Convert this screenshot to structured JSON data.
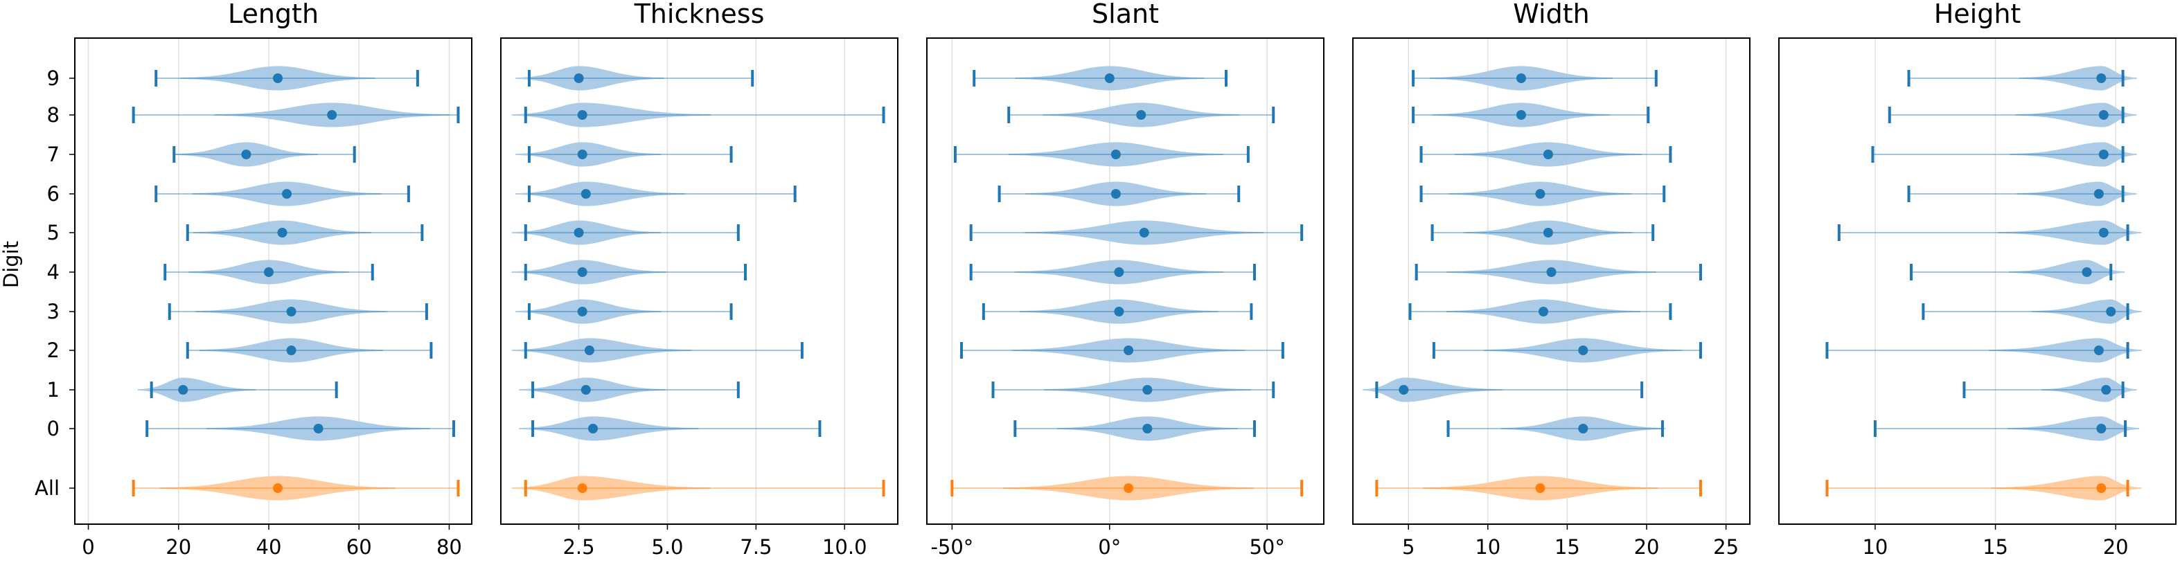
{
  "figure": {
    "ylabel": "Digit",
    "rows": [
      "9",
      "8",
      "7",
      "6",
      "5",
      "4",
      "3",
      "2",
      "1",
      "0",
      "All"
    ],
    "colors": {
      "digit_fill": "#a6c8e6",
      "digit_mark": "#1f77b4",
      "all_fill": "#ffc99a",
      "all_mark": "#ff7f0e",
      "grid": "#e0e0e0"
    }
  },
  "chart_data": [
    {
      "type": "violin",
      "title": "Length",
      "xlim": [
        -3,
        85
      ],
      "xticks": [
        0,
        20,
        40,
        60,
        80
      ],
      "xtick_labels": [
        "0",
        "20",
        "40",
        "60",
        "80"
      ],
      "rows": [
        "9",
        "8",
        "7",
        "6",
        "5",
        "4",
        "3",
        "2",
        "1",
        "0",
        "All"
      ],
      "min": [
        15,
        10,
        19,
        15,
        22,
        17,
        18,
        22,
        14,
        13,
        10
      ],
      "max": [
        73,
        82,
        59,
        71,
        74,
        63,
        75,
        76,
        55,
        81,
        82
      ],
      "median": [
        42,
        54,
        35,
        44,
        43,
        40,
        45,
        45,
        21,
        51,
        42
      ]
    },
    {
      "type": "violin",
      "title": "Thickness",
      "xlim": [
        0.3,
        11.5
      ],
      "xticks": [
        2.5,
        5.0,
        7.5,
        10.0
      ],
      "xtick_labels": [
        "2.5",
        "5.0",
        "7.5",
        "10.0"
      ],
      "rows": [
        "9",
        "8",
        "7",
        "6",
        "5",
        "4",
        "3",
        "2",
        "1",
        "0",
        "All"
      ],
      "min": [
        1.1,
        1.0,
        1.1,
        1.1,
        1.0,
        1.0,
        1.1,
        1.0,
        1.2,
        1.2,
        1.0
      ],
      "max": [
        7.4,
        11.1,
        6.8,
        8.6,
        7.0,
        7.2,
        6.8,
        8.8,
        7.0,
        9.3,
        11.1
      ],
      "median": [
        2.5,
        2.6,
        2.6,
        2.7,
        2.5,
        2.6,
        2.6,
        2.8,
        2.7,
        2.9,
        2.6
      ]
    },
    {
      "type": "violin",
      "title": "Slant",
      "xlim": [
        -58,
        68
      ],
      "xticks": [
        -50,
        0,
        50
      ],
      "xtick_labels": [
        "-50°",
        "0°",
        "50°"
      ],
      "rows": [
        "9",
        "8",
        "7",
        "6",
        "5",
        "4",
        "3",
        "2",
        "1",
        "0",
        "All"
      ],
      "min": [
        -43,
        -32,
        -49,
        -35,
        -44,
        -44,
        -40,
        -47,
        -37,
        -30,
        -50
      ],
      "max": [
        37,
        52,
        44,
        41,
        61,
        46,
        45,
        55,
        52,
        46,
        61
      ],
      "median": [
        0,
        10,
        2,
        2,
        11,
        3,
        3,
        6,
        12,
        12,
        6
      ]
    },
    {
      "type": "violin",
      "title": "Width",
      "xlim": [
        1.5,
        26.5
      ],
      "xticks": [
        5,
        10,
        15,
        20,
        25
      ],
      "xtick_labels": [
        "5",
        "10",
        "15",
        "20",
        "25"
      ],
      "rows": [
        "9",
        "8",
        "7",
        "6",
        "5",
        "4",
        "3",
        "2",
        "1",
        "0",
        "All"
      ],
      "min": [
        5.3,
        5.3,
        5.8,
        5.8,
        6.5,
        5.5,
        5.1,
        6.6,
        3.0,
        7.5,
        3.0
      ],
      "max": [
        20.6,
        20.1,
        21.5,
        21.1,
        20.4,
        23.4,
        21.5,
        23.4,
        19.7,
        21.0,
        23.4
      ],
      "median": [
        12.1,
        12.1,
        13.8,
        13.3,
        13.8,
        14.0,
        13.5,
        16.0,
        4.7,
        16.0,
        13.3
      ]
    },
    {
      "type": "violin",
      "title": "Height",
      "xlim": [
        6,
        22.5
      ],
      "xticks": [
        10,
        15,
        20
      ],
      "xtick_labels": [
        "10",
        "15",
        "20"
      ],
      "rows": [
        "9",
        "8",
        "7",
        "6",
        "5",
        "4",
        "3",
        "2",
        "1",
        "0",
        "All"
      ],
      "min": [
        11.4,
        10.6,
        9.9,
        11.4,
        8.5,
        11.5,
        12.0,
        8.0,
        13.7,
        10.0,
        8.0
      ],
      "max": [
        20.3,
        20.3,
        20.3,
        20.3,
        20.5,
        19.8,
        20.5,
        20.5,
        20.3,
        20.4,
        20.5
      ],
      "median": [
        19.4,
        19.5,
        19.5,
        19.3,
        19.5,
        18.8,
        19.8,
        19.3,
        19.6,
        19.4,
        19.4
      ]
    }
  ]
}
